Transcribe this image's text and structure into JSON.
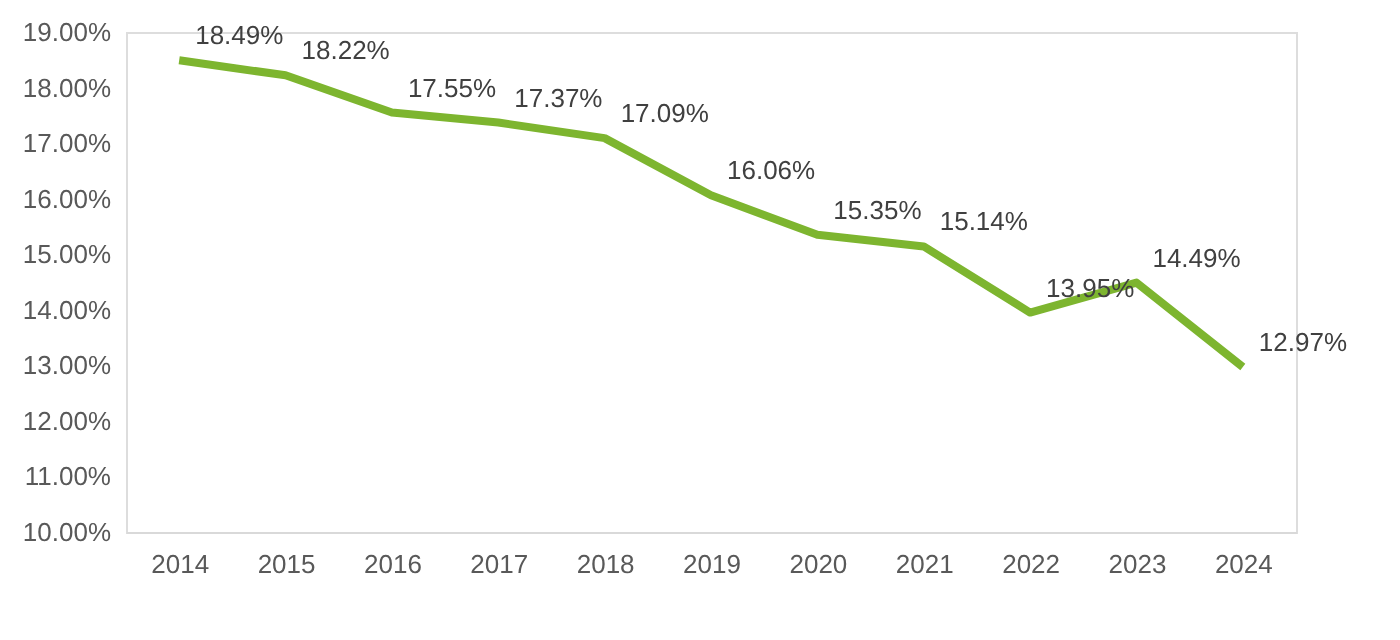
{
  "chart_data": {
    "type": "line",
    "categories": [
      "2014",
      "2015",
      "2016",
      "2017",
      "2018",
      "2019",
      "2020",
      "2021",
      "2022",
      "2023",
      "2024"
    ],
    "series": [
      {
        "color": "#7db52f",
        "values": [
          18.49,
          18.22,
          17.55,
          17.37,
          17.09,
          16.06,
          15.35,
          15.14,
          13.95,
          14.49,
          12.97
        ],
        "value_labels": [
          "18.49%",
          "18.22%",
          "17.55%",
          "17.37%",
          "17.09%",
          "16.06%",
          "15.35%",
          "15.14%",
          "13.95%",
          "14.49%",
          "12.97%"
        ]
      }
    ],
    "ylim": [
      10,
      19
    ],
    "yticks": [
      {
        "value": 10,
        "label": "10.00%"
      },
      {
        "value": 11,
        "label": "11.00%"
      },
      {
        "value": 12,
        "label": "12.00%"
      },
      {
        "value": 13,
        "label": "13.00%"
      },
      {
        "value": 14,
        "label": "14.00%"
      },
      {
        "value": 15,
        "label": "15.00%"
      },
      {
        "value": 16,
        "label": "16.00%"
      },
      {
        "value": 17,
        "label": "17.00%"
      },
      {
        "value": 18,
        "label": "18.00%"
      },
      {
        "value": 19,
        "label": "19.00%"
      }
    ],
    "grid": false,
    "marker": "none",
    "line_style": "solid"
  }
}
